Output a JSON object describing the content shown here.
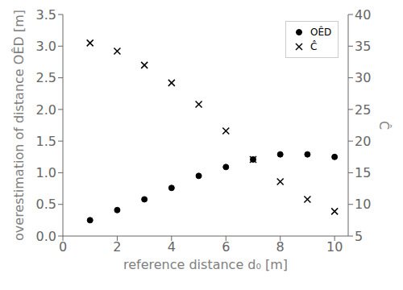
{
  "chart_data": {
    "type": "scatter",
    "x": [
      1,
      2,
      3,
      4,
      5,
      6,
      7,
      8,
      9,
      10
    ],
    "series": [
      {
        "name": "OÊD",
        "color": "#000000",
        "marker": "circle",
        "values": [
          0.25,
          0.41,
          0.58,
          0.76,
          0.95,
          1.09,
          1.21,
          1.29,
          1.29,
          1.25
        ]
      },
      {
        "name": "Ĉ",
        "color": "#000000",
        "marker": "x",
        "axis": "y2",
        "values": [
          35.5,
          34.2,
          32.0,
          29.2,
          25.8,
          21.6,
          17.1,
          13.6,
          10.8,
          8.9
        ]
      }
    ],
    "xlabel": "reference distance d₀ [m]",
    "ylabel": "overestimation of distance OÊD [m]",
    "y2label": "Ĉ",
    "xlim": [
      0,
      10.5
    ],
    "xticks": [
      0,
      2,
      4,
      6,
      8,
      10
    ],
    "ylim": [
      0,
      3.5
    ],
    "yticks": [
      {
        "value": 0,
        "label": "0.0"
      },
      0.5,
      {
        "value": 1,
        "label": "1.0"
      },
      1.5,
      {
        "value": 2,
        "label": "2.0"
      },
      2.5,
      {
        "value": 3,
        "label": "3.0"
      },
      3.5
    ],
    "y2lim": [
      5,
      40
    ],
    "y2ticks": [
      5,
      10,
      15,
      20,
      25,
      30,
      35,
      40
    ],
    "legend": "upper right",
    "grid": false
  }
}
